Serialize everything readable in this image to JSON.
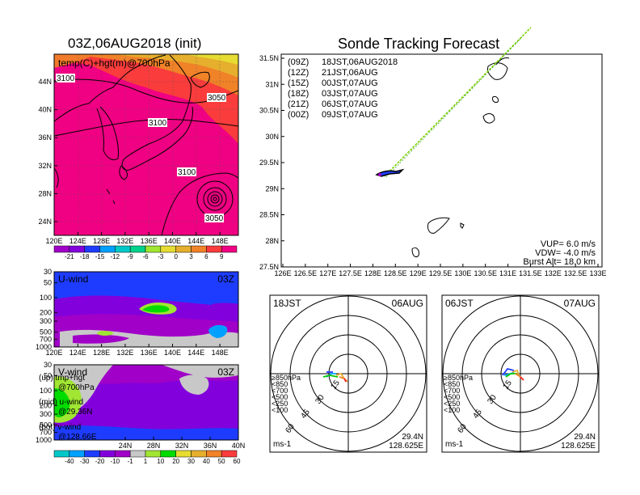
{
  "left": {
    "title": "03Z,06AUG2018 (init)",
    "map_label": "temp(C)+hgt(m)@700hPa",
    "contour_labels": [
      "3100",
      "3050",
      "3100",
      "3100",
      "3050"
    ],
    "map_lat_ticks": [
      "44N",
      "40N",
      "36N",
      "32N",
      "28N",
      "24N"
    ],
    "lon_ticks": [
      "120E",
      "124E",
      "128E",
      "132E",
      "136E",
      "140E",
      "144E",
      "148E"
    ],
    "temp_colorbar_labels": [
      "-21",
      "-18",
      "-15",
      "-12",
      "-9",
      "-6",
      "-3",
      "0",
      "3",
      "6",
      "9"
    ],
    "u_panel": {
      "label": "U-wind",
      "time": "03Z"
    },
    "v_panel": {
      "label": "V-wind",
      "time": "03Z"
    },
    "pressure_ticks": [
      "30",
      "50",
      "100",
      "200",
      "300",
      "500",
      "700",
      "1000"
    ],
    "v_lat_ticks": [
      "24N",
      "28N",
      "32N",
      "36N",
      "40N"
    ],
    "wind_colorbar_labels": [
      "-40",
      "-30",
      "-20",
      "-10",
      "-1",
      "1",
      "10",
      "20",
      "30",
      "40",
      "50",
      "60"
    ],
    "notes": [
      {
        "line1": "(up) tmp+hgt",
        "line2": "@700hPa"
      },
      {
        "line1": "(mid) u-wind",
        "line2": "@29.36N"
      },
      {
        "line1": "(bot) v-wind",
        "line2": "@128.66E"
      }
    ]
  },
  "track": {
    "title": "Sonde Tracking Forecast",
    "legend": [
      {
        "code": "(09Z)",
        "text": "18JST,06AUG2018",
        "color": "#000000"
      },
      {
        "code": "(12Z)",
        "text": "21JST,06AUG",
        "color": "#a000c8"
      },
      {
        "code": "(15Z)",
        "text": "00JST,07AUG",
        "color": "#1e3cff"
      },
      {
        "code": "(18Z)",
        "text": "03JST,07AUG",
        "color": "#00a000"
      },
      {
        "code": "(21Z)",
        "text": "06JST,07AUG",
        "color": "#e6af2d"
      },
      {
        "code": "(00Z)",
        "text": "09JST,07AUG",
        "color": "#f08228"
      }
    ],
    "lat_ticks": [
      "31.5N",
      "31N",
      "30.5N",
      "30N",
      "29.5N",
      "29N",
      "28.5N",
      "28N",
      "27.5N"
    ],
    "lon_ticks": [
      "126E",
      "126.5E",
      "127E",
      "127.5E",
      "128E",
      "128.5E",
      "129E",
      "129.5E",
      "130E",
      "130.5E",
      "131E",
      "131.5E",
      "132E",
      "132.5E",
      "133E"
    ],
    "params": [
      "VUP= 6.0 m/s",
      "VDW= -4.0 m/s",
      "Burst Alt= 18.0 km"
    ]
  },
  "polars": [
    {
      "time": "18JST",
      "date": "06AUG",
      "lat": "29.4N",
      "lon": "128.625E",
      "unit": "ms-1"
    },
    {
      "time": "06JST",
      "date": "07AUG",
      "lat": "29.4N",
      "lon": "128.625E",
      "unit": "ms-1"
    }
  ],
  "polar_rings": [
    "15",
    "30",
    "45",
    "60"
  ],
  "pressure_legend": [
    {
      "text": "≥850hPa",
      "color": "#ff2828"
    },
    {
      "text": "<850",
      "color": "#f08228"
    },
    {
      "text": "<700",
      "color": "#e6af2d"
    },
    {
      "text": "<500",
      "color": "#00c800"
    },
    {
      "text": "<250",
      "color": "#00a0ff"
    },
    {
      "text": "<100",
      "color": "#1e3cff"
    }
  ],
  "colors": {
    "temp_scale": [
      "#a000c8",
      "#8200dc",
      "#1e3cff",
      "#00a0ff",
      "#00c8c8",
      "#00d28c",
      "#a0e632",
      "#e6dc32",
      "#e6af2d",
      "#f08228",
      "#fa3c3c",
      "#f00082"
    ],
    "wind_scale": [
      "#00c8c8",
      "#00a0ff",
      "#1e3cff",
      "#8200dc",
      "#a000c8",
      "#c8c8c8",
      "#a0e632",
      "#00dc00",
      "#e6dc32",
      "#e6af2d",
      "#f08228",
      "#fa3c3c"
    ],
    "track_line": "#7ad200"
  }
}
